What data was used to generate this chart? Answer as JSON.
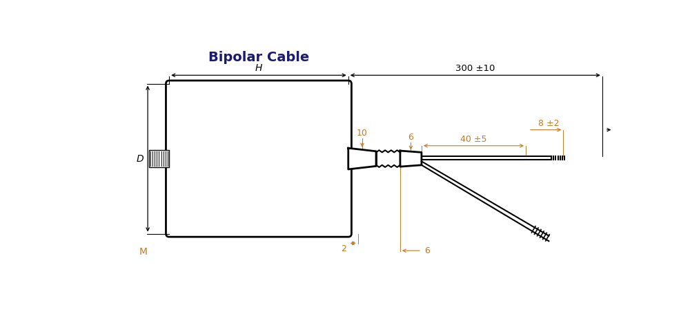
{
  "title": "Bipolar Cable",
  "title_fontsize": 14,
  "bg_color": "#ffffff",
  "line_color": "#000000",
  "dim_color_orange": "#c87820",
  "dim_color_black": "#000000",
  "fig_width": 10.0,
  "fig_height": 4.49,
  "labels": {
    "H": "H",
    "D": "D",
    "M": "M",
    "dim_300": "300 ±10",
    "dim_10": "10",
    "dim_6_top": "6",
    "dim_6_bot": "6",
    "dim_2": "2",
    "dim_40": "40 ±5",
    "dim_8": "8 ±2"
  }
}
